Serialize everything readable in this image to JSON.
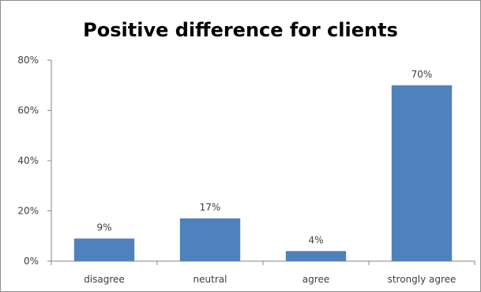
{
  "chart_data": {
    "type": "bar",
    "title": "Positive difference for clients",
    "categories": [
      "disagree",
      "neutral",
      "agree",
      "strongly agree"
    ],
    "values": [
      9,
      17,
      4,
      70
    ],
    "data_labels": [
      "9%",
      "17%",
      "4%",
      "70%"
    ],
    "yticks": [
      0,
      20,
      40,
      60,
      80
    ],
    "ytick_labels": [
      "0%",
      "20%",
      "40%",
      "60%",
      "80%"
    ],
    "ylim": [
      0,
      80
    ],
    "xlabel": "",
    "ylabel": "",
    "grid": false,
    "legend": "none",
    "bar_color": "#4f81bd"
  }
}
